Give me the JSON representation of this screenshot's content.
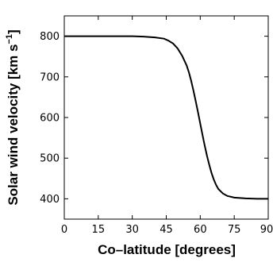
{
  "chart_data": {
    "type": "line",
    "xlabel": "Co–latitude [degrees]",
    "ylabel": {
      "main": "Solar wind velocity [km s",
      "superscript": "−1",
      "suffix": "]"
    },
    "xlim": [
      0,
      90
    ],
    "ylim": [
      350,
      850
    ],
    "xticks": [
      "0",
      "15",
      "30",
      "45",
      "60",
      "75",
      "90"
    ],
    "yticks": [
      "400",
      "500",
      "600",
      "700",
      "800"
    ],
    "grid": false,
    "legend": "none",
    "series": [
      {
        "color": "#000000",
        "x": [
          0,
          10,
          20,
          30,
          35,
          40,
          44,
          46,
          48,
          50,
          52,
          54,
          55,
          56,
          57,
          58,
          59,
          60,
          61,
          62,
          63,
          64,
          65,
          66,
          67,
          68,
          70,
          72,
          75,
          80,
          85,
          90
        ],
        "y": [
          800,
          800,
          800,
          800,
          799,
          797,
          794,
          789,
          782,
          770,
          752,
          728,
          711,
          690,
          666,
          640,
          613,
          585,
          557,
          530,
          505,
          483,
          463,
          447,
          434,
          424,
          413,
          407,
          403,
          401,
          400,
          400
        ]
      }
    ]
  }
}
